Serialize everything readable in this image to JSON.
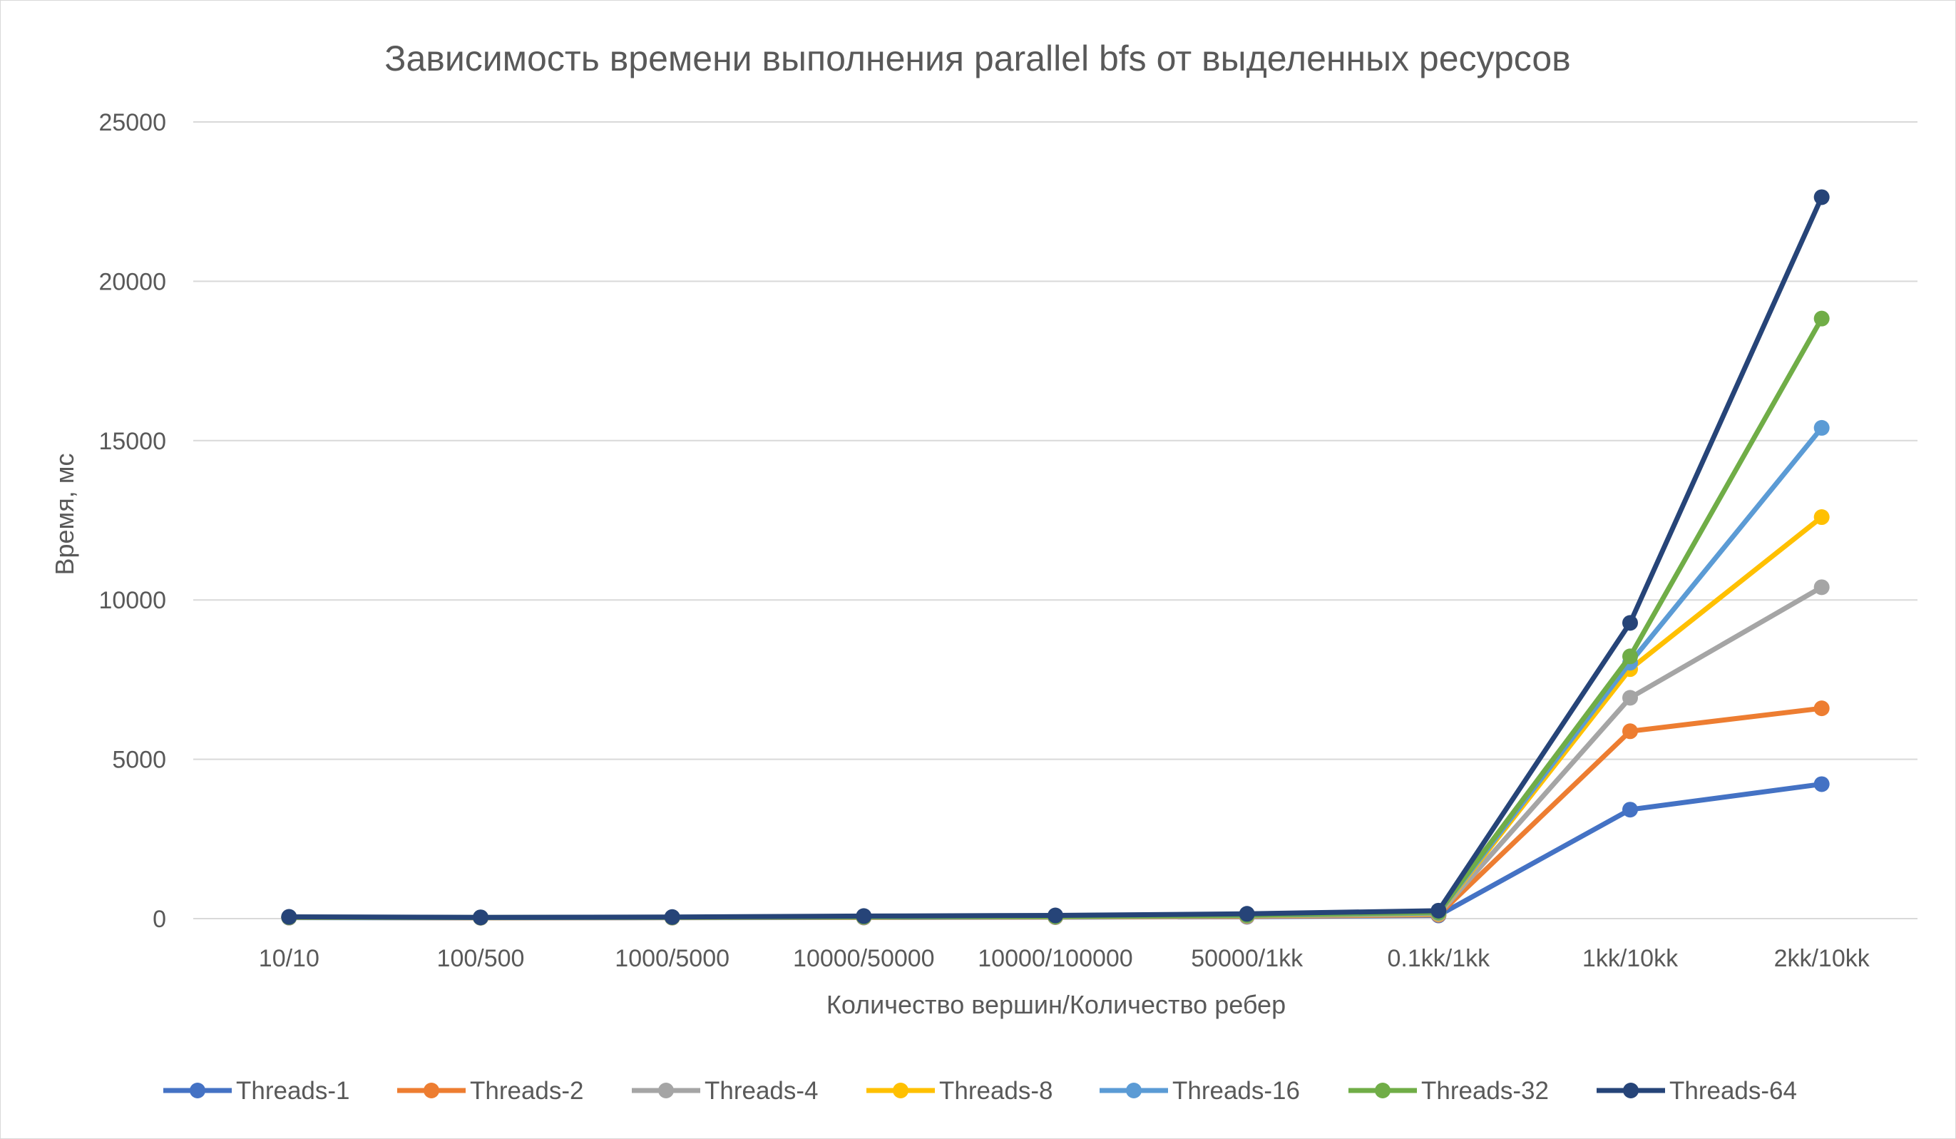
{
  "chart_data": {
    "type": "line",
    "title": "Зависимость времени выполнения parallel bfs от выделенных ресурсов",
    "xlabel": "Количество вершин/Количество ребер",
    "ylabel": "Время, мс",
    "ylim": [
      0,
      25000
    ],
    "yticks": [
      0,
      5000,
      10000,
      15000,
      20000,
      25000
    ],
    "grid": true,
    "legend_position": "bottom",
    "categories": [
      "10/10",
      "100/500",
      "1000/5000",
      "10000/50000",
      "10000/100000",
      "50000/1kk",
      "0.1kk/1kk",
      "1kk/10kk",
      "2kk/10kk"
    ],
    "series": [
      {
        "name": "Threads-1",
        "color": "#4472c4",
        "values": [
          30,
          25,
          30,
          35,
          45,
          60,
          100,
          3420,
          4220
        ]
      },
      {
        "name": "Threads-2",
        "color": "#ed7d31",
        "values": [
          35,
          28,
          32,
          40,
          50,
          70,
          120,
          5880,
          6600
        ]
      },
      {
        "name": "Threads-4",
        "color": "#a5a5a5",
        "values": [
          38,
          30,
          35,
          45,
          55,
          80,
          140,
          6930,
          10400
        ]
      },
      {
        "name": "Threads-8",
        "color": "#ffc000",
        "values": [
          40,
          32,
          38,
          50,
          60,
          90,
          160,
          7830,
          12600
        ]
      },
      {
        "name": "Threads-16",
        "color": "#5b9bd5",
        "values": [
          42,
          34,
          40,
          55,
          65,
          100,
          180,
          8030,
          15400
        ]
      },
      {
        "name": "Threads-32",
        "color": "#70ad47",
        "values": [
          45,
          36,
          42,
          60,
          70,
          110,
          200,
          8230,
          18830
        ]
      },
      {
        "name": "Threads-64",
        "color": "#264478",
        "values": [
          55,
          40,
          50,
          80,
          100,
          150,
          250,
          9280,
          22640
        ]
      }
    ]
  }
}
